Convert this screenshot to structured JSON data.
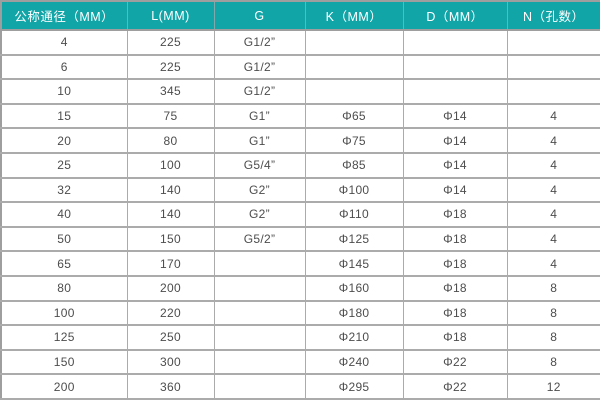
{
  "table": {
    "name": "thread-flange-dimension-spec-table",
    "columns": [
      "公称通径（MM）",
      "L(MM)",
      "G",
      "K（MM）",
      "D（MM）",
      "N（孔数）"
    ],
    "rows": [
      [
        "4",
        "225",
        "G1/2”",
        "",
        "",
        ""
      ],
      [
        "6",
        "225",
        "G1/2”",
        "",
        "",
        ""
      ],
      [
        "10",
        "345",
        "G1/2”",
        "",
        "",
        ""
      ],
      [
        "15",
        "75",
        "G1”",
        "Φ65",
        "Φ14",
        "4"
      ],
      [
        "20",
        "80",
        "G1”",
        "Φ75",
        "Φ14",
        "4"
      ],
      [
        "25",
        "100",
        "G5/4”",
        "Φ85",
        "Φ14",
        "4"
      ],
      [
        "32",
        "140",
        "G2”",
        "Φ100",
        "Φ14",
        "4"
      ],
      [
        "40",
        "140",
        "G2”",
        "Φ110",
        "Φ18",
        "4"
      ],
      [
        "50",
        "150",
        "G5/2”",
        "Φ125",
        "Φ18",
        "4"
      ],
      [
        "65",
        "170",
        "",
        "Φ145",
        "Φ18",
        "4"
      ],
      [
        "80",
        "200",
        "",
        "Φ160",
        "Φ18",
        "8"
      ],
      [
        "100",
        "220",
        "",
        "Φ180",
        "Φ18",
        "8"
      ],
      [
        "125",
        "250",
        "",
        "Φ210",
        "Φ18",
        "8"
      ],
      [
        "150",
        "300",
        "",
        "Φ240",
        "Φ22",
        "8"
      ],
      [
        "200",
        "360",
        "",
        "Φ295",
        "Φ22",
        "12"
      ]
    ]
  },
  "colors": {
    "header_bg": "#12a5a8",
    "header_text": "#ffffff",
    "border": "#9e9e9e",
    "cell_text": "#4d4d4d"
  }
}
